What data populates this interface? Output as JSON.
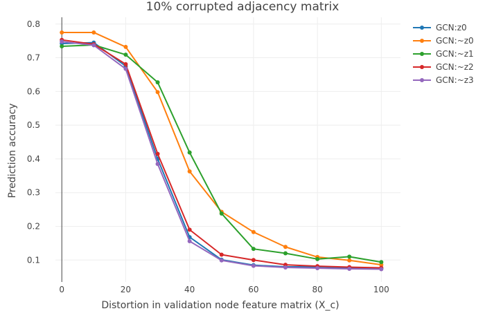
{
  "chart_data": {
    "type": "line",
    "title": "10% corrupted adjacency matrix",
    "xlabel": "Distortion in validation node feature matrix (X_c)",
    "ylabel": "Prediction accuracy",
    "x": [
      0,
      10,
      20,
      30,
      40,
      50,
      60,
      70,
      80,
      90,
      100
    ],
    "xlim": [
      -2,
      106
    ],
    "ylim": [
      0.035,
      0.82
    ],
    "xticks": [
      0,
      20,
      40,
      60,
      80,
      100
    ],
    "yticks": [
      0.1,
      0.2,
      0.3,
      0.4,
      0.5,
      0.6,
      0.7,
      0.8
    ],
    "grid": true,
    "legend_position": "top-right",
    "series": [
      {
        "name": "GCN:z0",
        "color": "#1f77b4",
        "values": [
          0.742,
          0.745,
          0.675,
          0.4,
          0.168,
          0.101,
          0.085,
          0.08,
          0.08,
          0.077,
          0.075
        ]
      },
      {
        "name": "GCN:~z0",
        "color": "#ff7f0e",
        "values": [
          0.775,
          0.775,
          0.732,
          0.598,
          0.363,
          0.243,
          0.183,
          0.139,
          0.109,
          0.099,
          0.086
        ]
      },
      {
        "name": "GCN:~z1",
        "color": "#2ca02c",
        "values": [
          0.734,
          0.738,
          0.709,
          0.627,
          0.419,
          0.238,
          0.133,
          0.12,
          0.103,
          0.11,
          0.094
        ]
      },
      {
        "name": "GCN:~z2",
        "color": "#d62728",
        "values": [
          0.753,
          0.74,
          0.681,
          0.415,
          0.19,
          0.116,
          0.1,
          0.086,
          0.082,
          0.079,
          0.077
        ]
      },
      {
        "name": "GCN:~z3",
        "color": "#9467bd",
        "values": [
          0.748,
          0.737,
          0.667,
          0.385,
          0.156,
          0.099,
          0.083,
          0.078,
          0.076,
          0.074,
          0.073
        ]
      }
    ]
  }
}
